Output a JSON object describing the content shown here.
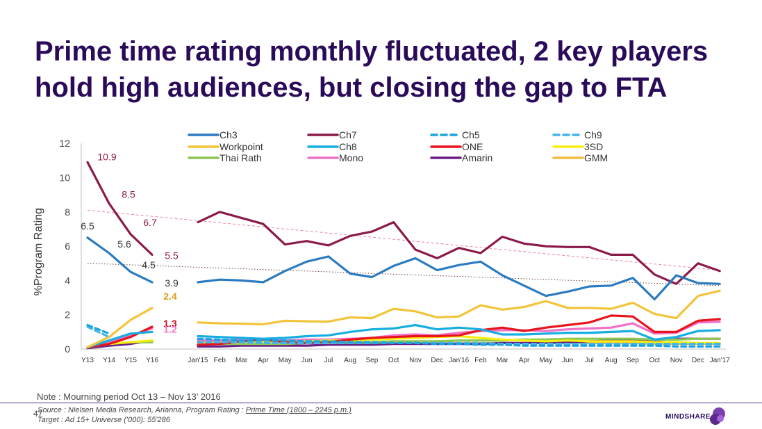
{
  "title": "Prime time rating monthly fluctuated, 2 key players hold high audiences, but closing the gap to FTA",
  "note": "Note : Mourning period Oct 13 – Nov 13’ 2016",
  "page_number": "47",
  "source": {
    "prefix": "Source : Nielsen Media Research, Arianna, Program Rating : ",
    "link": "Prime Time (1800 – 2245 p.m.)",
    "target": "Target : Ad 15+ Universe ('000): 55'286"
  },
  "logo": {
    "text": "MINDSHARE"
  },
  "chart_data": {
    "type": "line",
    "ylabel": "%Program Rating",
    "ylim": [
      0,
      12
    ],
    "yticks": [
      0,
      2,
      4,
      6,
      8,
      10,
      12
    ],
    "yearly": {
      "categories": [
        "Y13",
        "Y14",
        "Y15",
        "Y16"
      ],
      "series": [
        {
          "name": "Ch3",
          "values": [
            6.5,
            5.6,
            4.5,
            3.9
          ]
        },
        {
          "name": "Ch7",
          "values": [
            10.9,
            8.5,
            6.7,
            5.5
          ]
        },
        {
          "name": "Ch5",
          "values": [
            1.4,
            0.9,
            null,
            null
          ]
        },
        {
          "name": "Ch9",
          "values": [
            1.3,
            0.7,
            null,
            null
          ]
        },
        {
          "name": "Workpoint",
          "values": [
            0.1,
            0.7,
            1.7,
            2.4
          ]
        },
        {
          "name": "Ch8",
          "values": [
            0.1,
            0.5,
            0.9,
            1.0
          ]
        },
        {
          "name": "ONE",
          "values": [
            0.1,
            0.3,
            0.7,
            1.3
          ]
        },
        {
          "name": "3SD",
          "values": [
            0.1,
            0.3,
            0.4,
            0.5
          ]
        },
        {
          "name": "Thai Rath",
          "values": [
            0.1,
            0.3,
            0.4,
            0.4
          ]
        },
        {
          "name": "Mono",
          "values": [
            0.1,
            0.4,
            0.8,
            1.2
          ]
        },
        {
          "name": "Amarin",
          "values": [
            0.05,
            0.2,
            0.3,
            0.5
          ]
        },
        {
          "name": "GMM",
          "values": [
            0.1,
            0.3,
            0.4,
            0.4
          ]
        }
      ],
      "labels": [
        {
          "series": "Ch3",
          "index": 0,
          "text": "6.5"
        },
        {
          "series": "Ch3",
          "index": 1,
          "text": "5.6"
        },
        {
          "series": "Ch3",
          "index": 2,
          "text": "4.5"
        },
        {
          "series": "Ch3",
          "index": 3,
          "text": "3.9"
        },
        {
          "series": "Ch7",
          "index": 0,
          "text": "10.9"
        },
        {
          "series": "Ch7",
          "index": 1,
          "text": "8.5"
        },
        {
          "series": "Ch7",
          "index": 2,
          "text": "6.7"
        },
        {
          "series": "Ch7",
          "index": 3,
          "text": "5.5"
        },
        {
          "series": "Workpoint",
          "index": 3,
          "text": "2.4"
        },
        {
          "series": "ONE",
          "index": 3,
          "text": "1.3"
        },
        {
          "series": "Mono",
          "index": 3,
          "text": "1.2"
        }
      ]
    },
    "monthly": {
      "categories": [
        "Jan'15",
        "Feb",
        "Mar",
        "Apr",
        "May",
        "Jun",
        "Jul",
        "Aug",
        "Sep",
        "Oct",
        "Nov",
        "Dec",
        "Jan'16",
        "Feb",
        "Mar",
        "Apr",
        "May",
        "Jun",
        "Jul",
        "Aug",
        "Sep",
        "Oct",
        "Nov",
        "Dec",
        "Jan'17"
      ],
      "series": [
        {
          "name": "Ch3",
          "values": [
            3.9,
            4.05,
            4.0,
            3.9,
            4.55,
            5.1,
            5.4,
            4.4,
            4.2,
            4.85,
            5.3,
            4.6,
            4.9,
            5.1,
            4.3,
            3.7,
            3.1,
            3.35,
            3.65,
            3.7,
            4.15,
            2.9,
            4.3,
            3.85,
            3.8
          ]
        },
        {
          "name": "Ch7",
          "values": [
            7.4,
            8.0,
            7.65,
            7.3,
            6.1,
            6.3,
            6.05,
            6.6,
            6.85,
            7.4,
            5.8,
            5.3,
            5.9,
            5.6,
            6.55,
            6.15,
            6.0,
            5.95,
            5.95,
            5.5,
            5.5,
            4.35,
            3.8,
            5.0,
            4.55
          ]
        },
        {
          "name": "Ch5",
          "values": [
            0.6,
            0.55,
            0.5,
            0.5,
            0.5,
            0.45,
            0.45,
            0.4,
            0.4,
            0.35,
            0.35,
            0.3,
            0.3,
            0.25,
            0.25,
            0.2,
            0.2,
            0.2,
            0.2,
            0.2,
            0.2,
            0.2,
            0.15,
            0.15,
            0.15
          ]
        },
        {
          "name": "Ch9",
          "values": [
            0.4,
            0.4,
            0.4,
            0.35,
            0.35,
            0.35,
            0.35,
            0.35,
            0.35,
            0.35,
            0.35,
            0.35,
            0.35,
            0.35,
            0.3,
            0.3,
            0.3,
            0.3,
            0.3,
            0.3,
            0.3,
            0.3,
            0.3,
            0.3,
            0.3
          ]
        },
        {
          "name": "Workpoint",
          "values": [
            1.55,
            1.5,
            1.48,
            1.45,
            1.65,
            1.62,
            1.6,
            1.85,
            1.8,
            2.35,
            2.2,
            1.85,
            1.9,
            2.55,
            2.3,
            2.45,
            2.8,
            2.4,
            2.4,
            2.35,
            2.7,
            2.05,
            1.8,
            3.1,
            3.4
          ]
        },
        {
          "name": "Ch8",
          "values": [
            0.75,
            0.7,
            0.65,
            0.6,
            0.65,
            0.75,
            0.8,
            1.0,
            1.15,
            1.2,
            1.4,
            1.15,
            1.25,
            1.15,
            0.85,
            0.85,
            0.9,
            0.95,
            0.95,
            1.0,
            1.05,
            0.55,
            0.7,
            1.05,
            1.1
          ]
        },
        {
          "name": "ONE",
          "values": [
            0.25,
            0.3,
            0.45,
            0.55,
            0.4,
            0.35,
            0.4,
            0.55,
            0.65,
            0.7,
            0.75,
            0.75,
            0.8,
            1.1,
            1.25,
            1.05,
            1.25,
            1.4,
            1.55,
            1.95,
            1.9,
            1.0,
            1.0,
            1.65,
            1.75
          ]
        },
        {
          "name": "3SD",
          "values": [
            0.35,
            0.35,
            0.4,
            0.4,
            0.4,
            0.45,
            0.5,
            0.5,
            0.55,
            0.6,
            0.65,
            0.7,
            0.75,
            0.65,
            0.55,
            0.5,
            0.45,
            0.5,
            0.45,
            0.45,
            0.45,
            0.4,
            0.4,
            0.35,
            0.35
          ]
        },
        {
          "name": "Thai Rath",
          "values": [
            0.3,
            0.3,
            0.3,
            0.3,
            0.3,
            0.35,
            0.35,
            0.4,
            0.4,
            0.45,
            0.45,
            0.45,
            0.5,
            0.5,
            0.5,
            0.55,
            0.55,
            0.6,
            0.6,
            0.6,
            0.6,
            0.55,
            0.55,
            0.6,
            0.6
          ]
        },
        {
          "name": "Mono",
          "values": [
            0.5,
            0.5,
            0.55,
            0.55,
            0.5,
            0.55,
            0.55,
            0.6,
            0.65,
            0.8,
            0.85,
            0.8,
            0.95,
            1.05,
            1.1,
            1.1,
            1.05,
            1.15,
            1.2,
            1.25,
            1.5,
            0.9,
            0.95,
            1.55,
            1.6
          ]
        },
        {
          "name": "Amarin",
          "values": [
            0.15,
            0.15,
            0.2,
            0.2,
            0.2,
            0.2,
            0.25,
            0.25,
            0.25,
            0.3,
            0.3,
            0.3,
            0.3,
            0.3,
            0.35,
            0.35,
            0.35,
            0.4,
            0.45,
            0.5,
            0.55,
            0.5,
            0.6,
            0.6,
            0.6
          ]
        },
        {
          "name": "GMM",
          "values": [
            0.45,
            0.45,
            0.4,
            0.4,
            0.4,
            0.4,
            0.35,
            0.35,
            0.35,
            0.4,
            0.4,
            0.35,
            0.35,
            0.35,
            0.35,
            0.35,
            0.35,
            0.35,
            0.35,
            0.35,
            0.35,
            0.3,
            0.3,
            0.3,
            0.3
          ]
        }
      ]
    },
    "trendlines": [
      {
        "series": "Ch7",
        "from": 8.1,
        "to": 4.6,
        "color": "#e8859a",
        "dash": "dashed"
      },
      {
        "series": "Ch3",
        "from": 5.0,
        "to": 3.7,
        "color": "#6b3a3a",
        "dash": "dotted"
      }
    ],
    "legend": {
      "placement": "top",
      "entries": [
        {
          "name": "Ch3",
          "color": "#2b7bc0",
          "dashed": false
        },
        {
          "name": "Ch7",
          "color": "#8b1a4a",
          "dashed": false
        },
        {
          "name": "Ch5",
          "color": "#1aa3e0",
          "dashed": true
        },
        {
          "name": "Ch9",
          "color": "#45b4ea",
          "dashed": true
        },
        {
          "name": "Workpoint",
          "color": "#f2c43a",
          "dashed": false
        },
        {
          "name": "Ch8",
          "color": "#16aee0",
          "dashed": false
        },
        {
          "name": "ONE",
          "color": "#e8141c",
          "dashed": false
        },
        {
          "name": "3SD",
          "color": "#f5ee12",
          "dashed": false
        },
        {
          "name": "Thai Rath",
          "color": "#8cc653",
          "dashed": false
        },
        {
          "name": "Mono",
          "color": "#ee72c5",
          "dashed": false
        },
        {
          "name": "Amarin",
          "color": "#6a1d85",
          "dashed": false
        },
        {
          "name": "GMM",
          "color": "#f2bd40",
          "dashed": false
        }
      ]
    },
    "label_colors": {
      "Ch3": "#333333",
      "Ch7": "#8b1a4a",
      "Workpoint": "#d4a017",
      "ONE": "#d0101a",
      "Mono": "#ee72c5"
    },
    "grid": false
  }
}
